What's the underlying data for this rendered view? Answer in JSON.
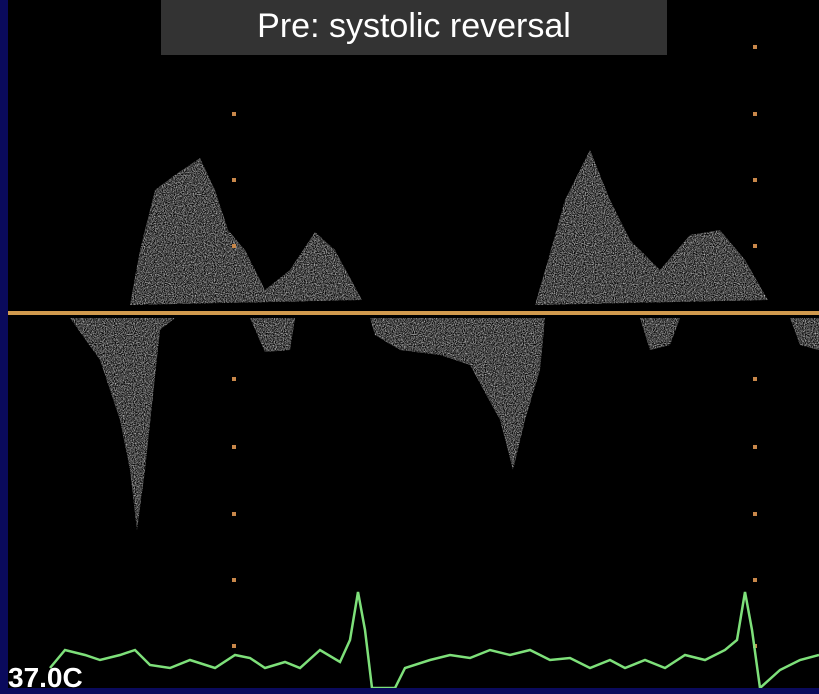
{
  "header": {
    "title": "Pre: systolic reversal"
  },
  "overlay": {
    "temperature": "37.0C"
  }
}
